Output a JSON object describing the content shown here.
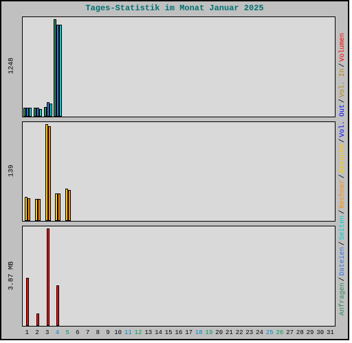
{
  "title": "Tages-Statistik im Monat Januar 2025",
  "days": 31,
  "panels": [
    {
      "ylabel": "1248",
      "series": [
        {
          "key": "anfragen",
          "color": "#2e8b57",
          "values": [
            112,
            110,
            120,
            1248,
            0
          ]
        },
        {
          "key": "dateien",
          "color": "#3276e8",
          "values": [
            112,
            110,
            180,
            1180,
            0
          ]
        },
        {
          "key": "seiten",
          "color": "#00d0d0",
          "values": [
            108,
            95,
            165,
            1175,
            0
          ]
        }
      ],
      "ymax": 1248
    },
    {
      "ylabel": "139",
      "series": [
        {
          "key": "besuche",
          "color": "#ffcc00",
          "values": [
            35,
            32,
            139,
            40,
            46
          ]
        },
        {
          "key": "rechner",
          "color": "#ff8c00",
          "values": [
            33,
            32,
            136,
            40,
            44
          ]
        }
      ],
      "ymax": 139
    },
    {
      "ylabel": "3.87 MB",
      "series": [
        {
          "key": "vol_in",
          "color": "#b8860b",
          "values": [
            0,
            0,
            0,
            0,
            0
          ]
        },
        {
          "key": "vol_out",
          "color": "#0000ff",
          "values": [
            0,
            0,
            0,
            0,
            0
          ]
        },
        {
          "key": "volumen",
          "color": "#ff0000",
          "values": [
            1.9,
            0.5,
            3.87,
            1.6,
            0
          ]
        }
      ],
      "ymax": 3.87
    }
  ],
  "xaxis": {
    "weekday_colors": {
      "weekday": "#000000",
      "sat": "#0088cc",
      "sun": "#009955"
    },
    "start_dow": 3,
    "comment": "1 Jan 2025 = Wed (idx 3, 0=Sun)"
  },
  "legend": [
    {
      "label": "Volumen",
      "color": "#ff0000"
    },
    {
      "label": "Vol. In",
      "color": "#b8860b"
    },
    {
      "label": "Vol. Out",
      "color": "#0000ff"
    },
    {
      "label": "Besuche",
      "color": "#ffcc00"
    },
    {
      "label": "Rechner",
      "color": "#ff8c00"
    },
    {
      "label": "Seiten",
      "color": "#00d0d0"
    },
    {
      "label": "Dateien",
      "color": "#3276e8"
    },
    {
      "label": "Anfragen",
      "color": "#2e8b57"
    }
  ],
  "background": "#c0c0c0",
  "plot_background": "#d9d9d9"
}
